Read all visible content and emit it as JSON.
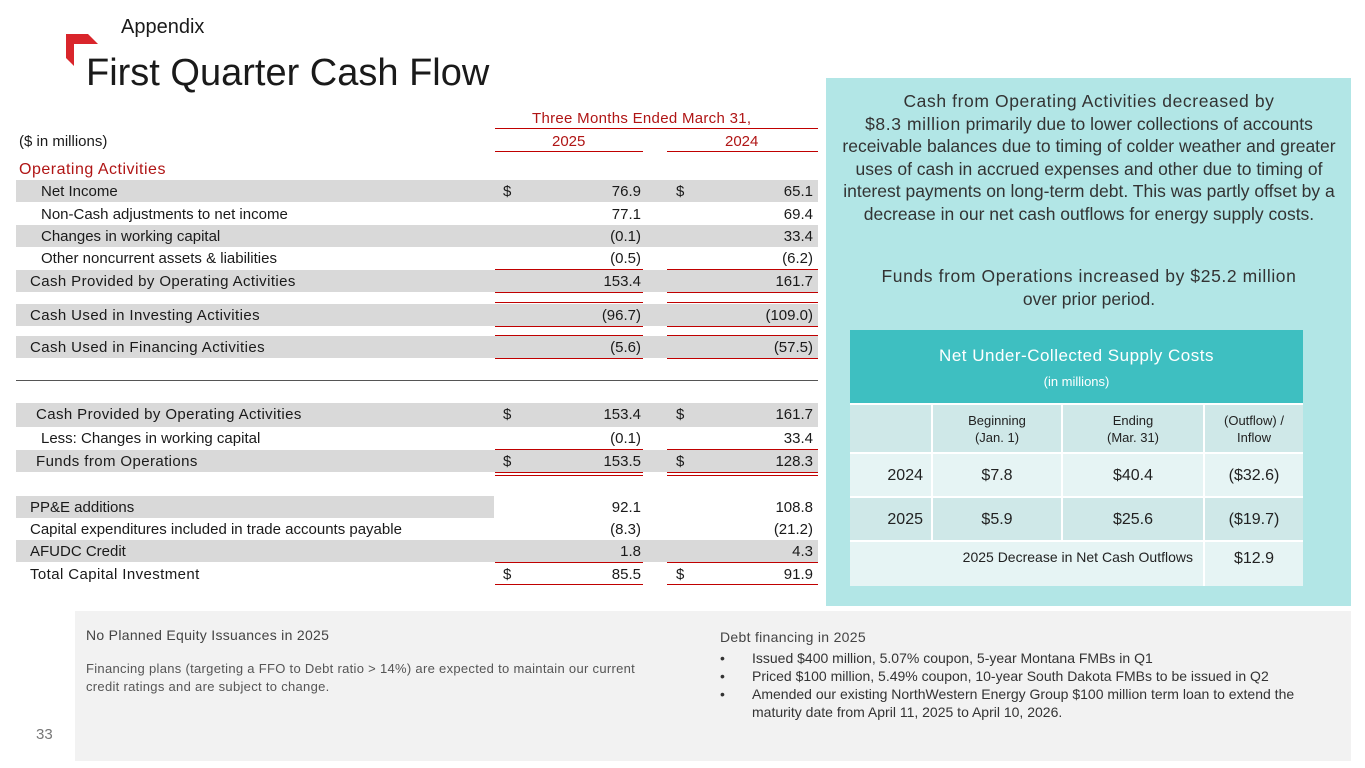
{
  "header": {
    "section": "Appendix",
    "title": "First Quarter Cash Flow"
  },
  "colors": {
    "accent_red": "#c00000",
    "panel_teal": "#b2e6e6",
    "table_head_teal": "#3ebfc1"
  },
  "cashflow_table": {
    "period_header": "Three Months Ended March 31,",
    "units_label": "($ in millions)",
    "years": [
      "2025",
      "2024"
    ],
    "section_operating": "Operating Activities",
    "rows_operating": [
      {
        "label": "Net Income",
        "dollar": "$",
        "v2025": "76.9",
        "v2024": "65.1"
      },
      {
        "label": "Non-Cash adjustments to net income",
        "dollar": "",
        "v2025": "77.1",
        "v2024": "69.4"
      },
      {
        "label": "Changes in working capital",
        "dollar": "",
        "v2025": "(0.1)",
        "v2024": "33.4"
      },
      {
        "label": "Other noncurrent assets & liabilities",
        "dollar": "",
        "v2025": "(0.5)",
        "v2024": "(6.2)"
      }
    ],
    "cash_provided_ops": {
      "label": "Cash Provided by Operating Activities",
      "v2025": "153.4",
      "v2024": "161.7"
    },
    "cash_investing": {
      "label": "Cash Used in Investing Activities",
      "v2025": "(96.7)",
      "v2024": "(109.0)"
    },
    "cash_financing": {
      "label": "Cash Used in Financing Activities",
      "v2025": "(5.6)",
      "v2024": "(57.5)"
    },
    "ffo": [
      {
        "label": "Cash Provided by Operating Activities",
        "dollar": "$",
        "v2025": "153.4",
        "v2024": "161.7"
      },
      {
        "label": "Less: Changes in working capital",
        "dollar": "",
        "v2025": "(0.1)",
        "v2024": "33.4"
      },
      {
        "label": "Funds from Operations",
        "dollar": "$",
        "v2025": "153.5",
        "v2024": "128.3"
      }
    ],
    "capex": [
      {
        "label": "PP&E additions",
        "dollar": "",
        "v2025": "92.1",
        "v2024": "108.8"
      },
      {
        "label": "Capital expenditures included in trade accounts payable",
        "dollar": "",
        "v2025": "(8.3)",
        "v2024": "(21.2)"
      },
      {
        "label": "AFUDC Credit",
        "dollar": "",
        "v2025": "1.8",
        "v2024": "4.3"
      },
      {
        "label": "Total Capital Investment",
        "dollar": "$",
        "v2025": "85.5",
        "v2024": "91.9"
      }
    ]
  },
  "panel": {
    "p1_lead": "Cash from Operating Activities decreased by",
    "p1_amount": "$8.3 million",
    "p1_rest": " primarily due to lower collections of accounts receivable balances due to timing of colder weather and greater uses of cash in accrued expenses and other due to timing of interest payments on long-term debt. This was partly offset by a decrease in our net cash outflows for energy supply costs.",
    "p2_lead": "Funds from Operations increased by $25.2 million",
    "p2_rest": "over prior period."
  },
  "supply_costs": {
    "title": "Net Under-Collected Supply Costs",
    "subtitle": "(in millions)",
    "col_headers": [
      {
        "line1": "Beginning",
        "line2": "(Jan. 1)"
      },
      {
        "line1": "Ending",
        "line2": "(Mar. 31)"
      },
      {
        "line1": "(Outflow) /",
        "line2": "Inflow"
      }
    ],
    "rows": [
      {
        "year": "2024",
        "begin": "$7.8",
        "end": "$40.4",
        "flow": "($32.6)"
      },
      {
        "year": "2025",
        "begin": "$5.9",
        "end": "$25.6",
        "flow": "($19.7)"
      }
    ],
    "footer_label": "2025 Decrease in Net Cash Outflows",
    "footer_value": "$12.9"
  },
  "bottom": {
    "left_heading": "No Planned Equity Issuances in 2025",
    "left_text": "Financing plans (targeting a FFO to Debt ratio > 14%) are expected to maintain our current credit ratings and are subject to change.",
    "right_heading": "Debt financing in 2025",
    "bullets": [
      "Issued $400 million, 5.07% coupon, 5-year Montana FMBs in Q1",
      "Priced $100 million, 5.49% coupon, 10-year South Dakota FMBs to be issued in Q2",
      "Amended our existing NorthWestern Energy Group $100 million term loan to extend the maturity date from April 11, 2025 to April 10, 2026."
    ],
    "bullet_glyph": "•"
  },
  "page_number": "33"
}
